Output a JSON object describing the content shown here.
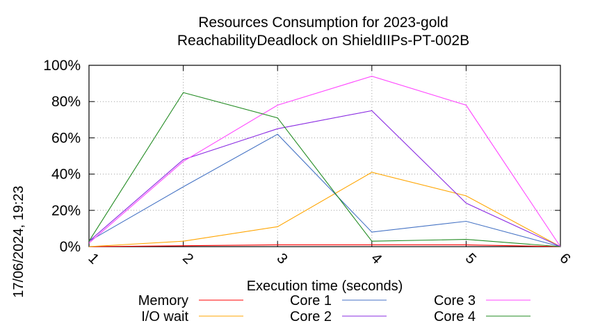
{
  "chart_data": {
    "type": "line",
    "title": "Resources Consumption for 2023-gold",
    "subtitle": "ReachabilityDeadlock on ShieldIIPs-PT-002B",
    "xlabel": "Execution time (seconds)",
    "side_label": "17/06/2024, 19:23",
    "x": [
      1,
      2,
      3,
      4,
      5,
      6
    ],
    "xlim": [
      1,
      6
    ],
    "ylim": [
      0,
      100
    ],
    "y_ticks": [
      "0%",
      "20%",
      "40%",
      "60%",
      "80%",
      "100%"
    ],
    "x_ticks": [
      "1",
      "2",
      "3",
      "4",
      "5",
      "6"
    ],
    "grid": true,
    "legend_placement": "bottom",
    "series": [
      {
        "name": "Memory",
        "color": "#ff0000",
        "values": [
          0,
          0.5,
          1,
          1,
          1,
          0
        ]
      },
      {
        "name": "I/O wait",
        "color": "#ffa500",
        "values": [
          0,
          3,
          11,
          41,
          28,
          0
        ]
      },
      {
        "name": "Core 1",
        "color": "#4472c4",
        "values": [
          3,
          33,
          62,
          8,
          14,
          0
        ]
      },
      {
        "name": "Core 2",
        "color": "#8a2be2",
        "values": [
          3,
          48,
          65,
          75,
          24,
          0
        ]
      },
      {
        "name": "Core 3",
        "color": "#ff44ff",
        "values": [
          2,
          47,
          78,
          94,
          78,
          0
        ]
      },
      {
        "name": "Core 4",
        "color": "#228b22",
        "values": [
          3,
          85,
          71,
          3,
          4,
          0
        ]
      }
    ]
  }
}
